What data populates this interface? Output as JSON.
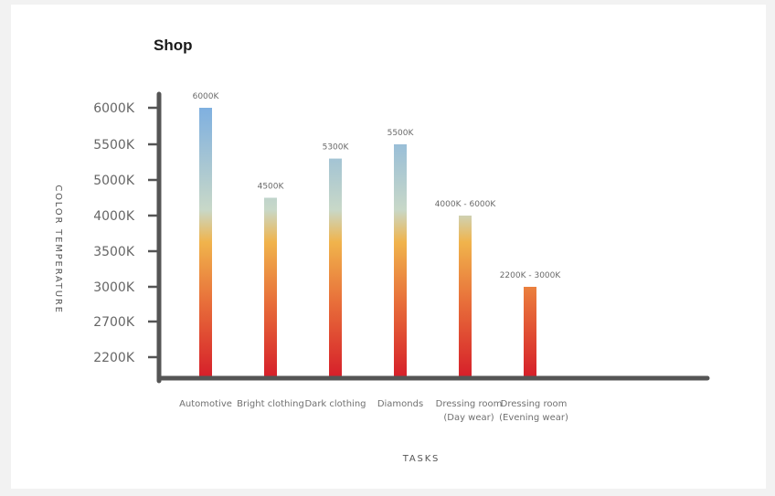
{
  "chart_data": {
    "type": "bar",
    "title": "Shop",
    "xlabel": "TASKS",
    "ylabel": "COLOR TEMPERATURE",
    "y_ticks": [
      "6000K",
      "5500K",
      "5000K",
      "4000K",
      "3500K",
      "3000K",
      "2700K",
      "2200K"
    ],
    "categories": [
      [
        "Automotive"
      ],
      [
        "Bright clothing"
      ],
      [
        "Dark clothing"
      ],
      [
        "Diamonds"
      ],
      [
        "Dressing room",
        "(Day wear)"
      ],
      [
        "Dressing room",
        "(Evening wear)"
      ]
    ],
    "values": [
      6000,
      4500,
      5300,
      5500,
      4000,
      3000
    ],
    "value_labels": [
      "6000K",
      "4500K",
      "5300K",
      "5500K",
      "4000K - 6000K",
      "2200K - 3000K"
    ],
    "gradient": {
      "cool": "#7fb0e0",
      "mid": "#f0b44c",
      "warm": "#d6202a"
    },
    "axis_color": "#555555",
    "grid": false
  }
}
